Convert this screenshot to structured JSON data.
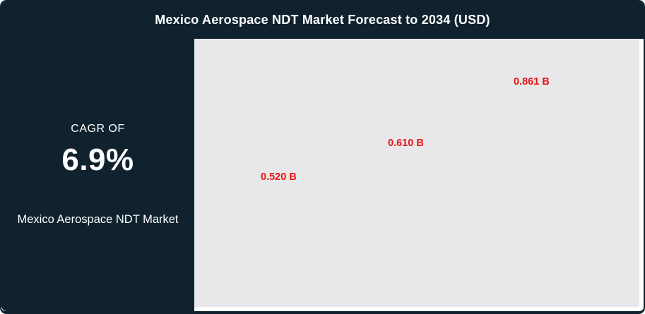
{
  "header": {
    "title": "Mexico Aerospace NDT Market Forecast to 2034 (USD)"
  },
  "sidebar": {
    "cagr_label": "CAGR OF",
    "cagr_value": "6.9%",
    "market_name": "Mexico Aerospace NDT Market"
  },
  "chart_data": {
    "type": "scatter",
    "title": "Mexico Aerospace NDT Market Forecast to 2034 (USD)",
    "unit": "USD Billion",
    "forecast_end_year": "2034",
    "points": [
      {
        "label": "0.520 B",
        "value": 0.52
      },
      {
        "label": "0.610 B",
        "value": 0.61
      },
      {
        "label": "0.861 B",
        "value": 0.861
      }
    ],
    "axes_visible": false,
    "grid": false,
    "legend": false,
    "label_color": "#e61414",
    "plot_background": "#e8e8ea"
  },
  "colors": {
    "dark_panel": "#0f222d",
    "plot_bg": "#e8e8ea",
    "accent_red": "#e61414",
    "text_light": "#ffffff"
  }
}
